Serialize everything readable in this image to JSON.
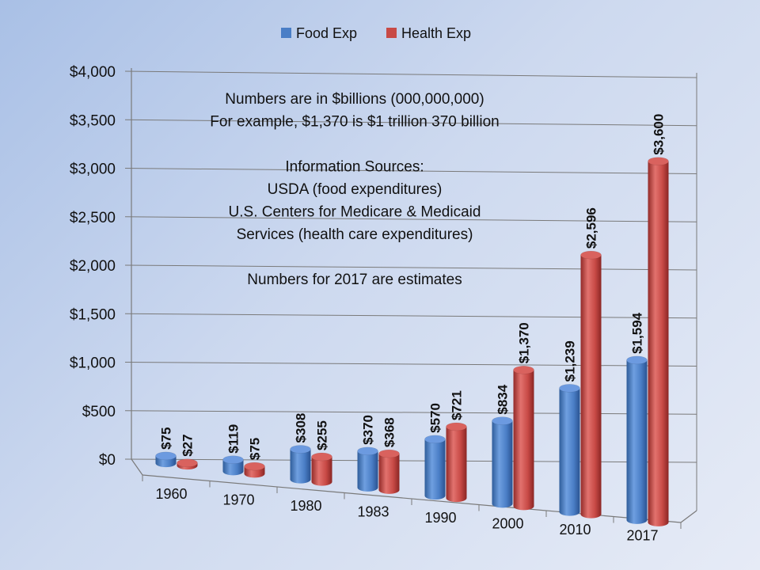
{
  "chart_data": {
    "type": "bar",
    "categories": [
      "1960",
      "1970",
      "1980",
      "1983",
      "1990",
      "2000",
      "2010",
      "2017"
    ],
    "series": [
      {
        "name": "Food Exp",
        "values": [
          75,
          119,
          308,
          370,
          570,
          834,
          1239,
          1594
        ],
        "labels": [
          "$75",
          "$119",
          "$308",
          "$370",
          "$570",
          "$834",
          "$1,239",
          "$1,594"
        ],
        "color": "#4a7ec6"
      },
      {
        "name": "Health Exp",
        "values": [
          27,
          75,
          255,
          368,
          721,
          1370,
          2596,
          3600
        ],
        "labels": [
          "$27",
          "$75",
          "$255",
          "$368",
          "$721",
          "$1,370",
          "$2,596",
          "$3,600"
        ],
        "color": "#c84a46"
      }
    ],
    "yticks": [
      "$0",
      "$500",
      "$1,000",
      "$1,500",
      "$2,000",
      "$2,500",
      "$3,000",
      "$3,500",
      "$4,000"
    ],
    "ylim": [
      0,
      4000
    ],
    "grid": true,
    "legend": "top-center",
    "annotation_lines": [
      "Numbers are in $billions (000,000,000)",
      "For example, $1,370 is $1 trillion 370 billion",
      "",
      "Information Sources:",
      "USDA (food expenditures)",
      "U.S. Centers for Medicare & Medicaid",
      "Services (health care expenditures)",
      "",
      "Numbers for 2017 are estimates"
    ]
  }
}
